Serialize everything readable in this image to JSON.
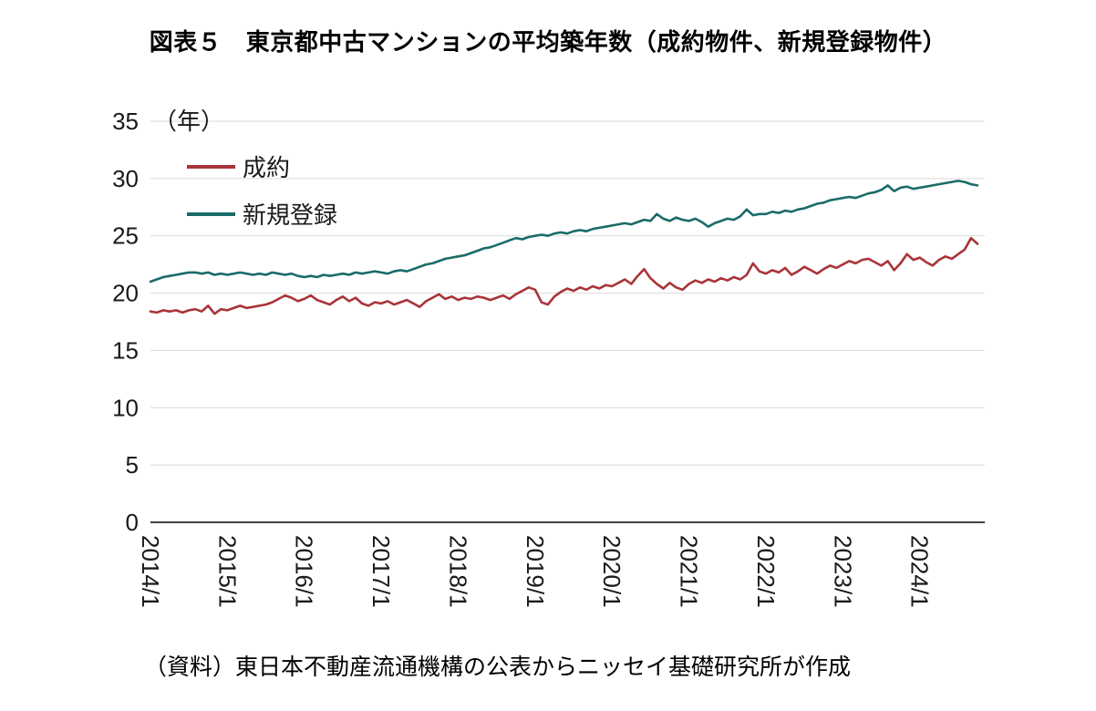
{
  "title": "図表５　東京都中古マンションの平均築年数（成約物件、新規登録物件）",
  "unit_label": "（年）",
  "source": "（資料）東日本不動産流通機構の公表からニッセイ基礎研究所が作成",
  "colors": {
    "keiyaku_red": "#a93439",
    "shinki_teal": "#1a6b68",
    "grid": "#d9d9d9",
    "axis": "#000000",
    "text": "#1a1a1a"
  },
  "chart_data": {
    "type": "line",
    "x_unit": "month",
    "x_start": "2014/1",
    "x_end": "2024/10",
    "x_tick_labels": [
      "2014/1",
      "2015/1",
      "2016/1",
      "2017/1",
      "2018/1",
      "2019/1",
      "2020/1",
      "2021/1",
      "2022/1",
      "2023/1",
      "2024/1"
    ],
    "ylim": [
      0,
      35
    ],
    "y_ticks": [
      0,
      5,
      10,
      15,
      20,
      25,
      30,
      35
    ],
    "grid": "horizontal",
    "legend_position": "top-left-inside",
    "series": [
      {
        "name": "成約",
        "color": "#a93439",
        "values": [
          18.4,
          18.3,
          18.5,
          18.4,
          18.5,
          18.3,
          18.5,
          18.6,
          18.4,
          18.9,
          18.2,
          18.6,
          18.5,
          18.7,
          18.9,
          18.7,
          18.8,
          18.9,
          19.0,
          19.2,
          19.5,
          19.8,
          19.6,
          19.3,
          19.5,
          19.8,
          19.4,
          19.2,
          19.0,
          19.4,
          19.7,
          19.3,
          19.6,
          19.1,
          18.9,
          19.2,
          19.1,
          19.3,
          19.0,
          19.2,
          19.4,
          19.1,
          18.8,
          19.3,
          19.6,
          19.9,
          19.5,
          19.7,
          19.4,
          19.6,
          19.5,
          19.7,
          19.6,
          19.4,
          19.6,
          19.8,
          19.5,
          19.9,
          20.2,
          20.5,
          20.3,
          19.2,
          19.0,
          19.7,
          20.1,
          20.4,
          20.2,
          20.5,
          20.3,
          20.6,
          20.4,
          20.7,
          20.6,
          20.9,
          21.2,
          20.8,
          21.5,
          22.1,
          21.3,
          20.8,
          20.4,
          20.9,
          20.5,
          20.3,
          20.8,
          21.1,
          20.9,
          21.2,
          21.0,
          21.3,
          21.1,
          21.4,
          21.2,
          21.6,
          22.6,
          21.9,
          21.7,
          22.0,
          21.8,
          22.2,
          21.6,
          21.9,
          22.3,
          22.0,
          21.7,
          22.1,
          22.4,
          22.2,
          22.5,
          22.8,
          22.6,
          22.9,
          23.0,
          22.7,
          22.4,
          22.8,
          22.0,
          22.6,
          23.4,
          22.9,
          23.1,
          22.7,
          22.4,
          22.9,
          23.2,
          23.0,
          23.4,
          23.8,
          24.8,
          24.3
        ]
      },
      {
        "name": "新規登録",
        "color": "#1a6b68",
        "values": [
          21.0,
          21.2,
          21.4,
          21.5,
          21.6,
          21.7,
          21.8,
          21.8,
          21.7,
          21.8,
          21.6,
          21.7,
          21.6,
          21.7,
          21.8,
          21.7,
          21.6,
          21.7,
          21.6,
          21.8,
          21.7,
          21.6,
          21.7,
          21.5,
          21.4,
          21.5,
          21.4,
          21.6,
          21.5,
          21.6,
          21.7,
          21.6,
          21.8,
          21.7,
          21.8,
          21.9,
          21.8,
          21.7,
          21.9,
          22.0,
          21.9,
          22.1,
          22.3,
          22.5,
          22.6,
          22.8,
          23.0,
          23.1,
          23.2,
          23.3,
          23.5,
          23.7,
          23.9,
          24.0,
          24.2,
          24.4,
          24.6,
          24.8,
          24.7,
          24.9,
          25.0,
          25.1,
          25.0,
          25.2,
          25.3,
          25.2,
          25.4,
          25.5,
          25.4,
          25.6,
          25.7,
          25.8,
          25.9,
          26.0,
          26.1,
          26.0,
          26.2,
          26.4,
          26.3,
          26.9,
          26.5,
          26.3,
          26.6,
          26.4,
          26.3,
          26.5,
          26.2,
          25.8,
          26.1,
          26.3,
          26.5,
          26.4,
          26.7,
          27.3,
          26.8,
          26.9,
          26.9,
          27.1,
          27.0,
          27.2,
          27.1,
          27.3,
          27.4,
          27.6,
          27.8,
          27.9,
          28.1,
          28.2,
          28.3,
          28.4,
          28.3,
          28.5,
          28.7,
          28.8,
          29.0,
          29.4,
          28.9,
          29.2,
          29.3,
          29.1,
          29.2,
          29.3,
          29.4,
          29.5,
          29.6,
          29.7,
          29.8,
          29.7,
          29.5,
          29.4
        ]
      }
    ]
  }
}
